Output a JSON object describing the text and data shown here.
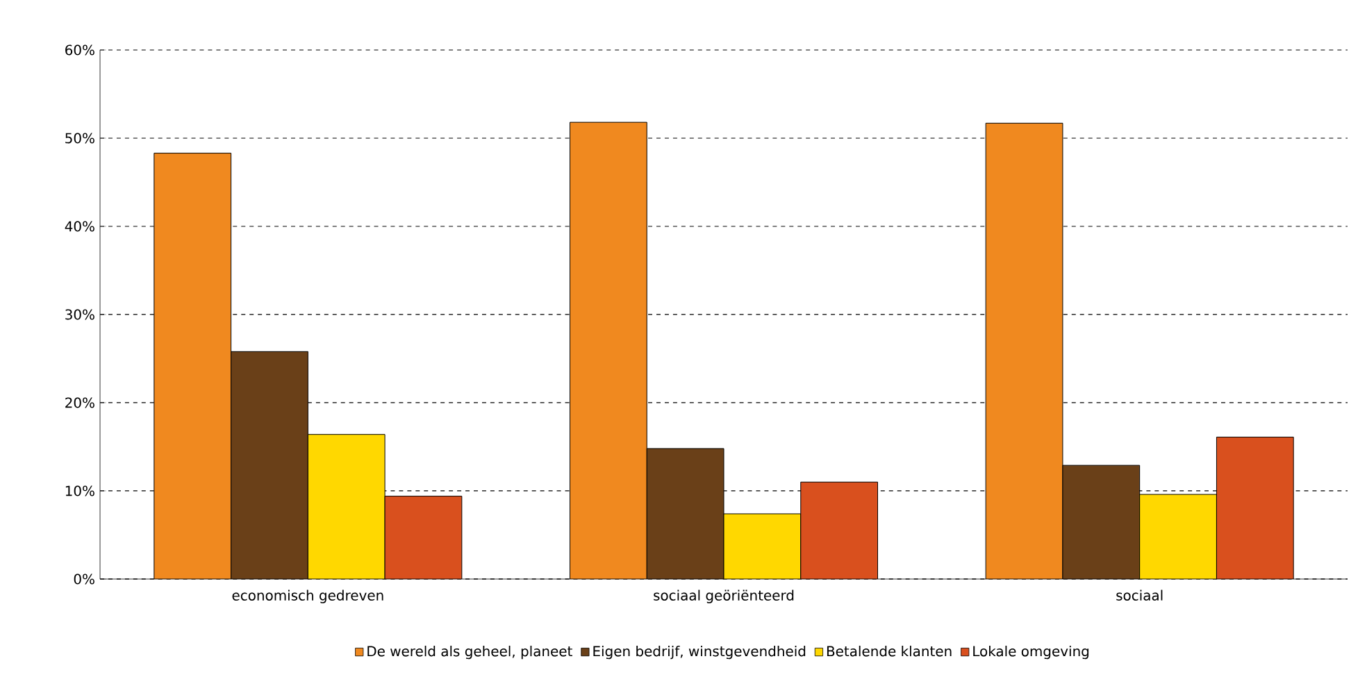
{
  "chart_data": {
    "type": "bar",
    "categories": [
      "economisch gedreven",
      "sociaal geöriënteerd",
      "sociaal"
    ],
    "series": [
      {
        "name": "De wereld als geheel, planeet",
        "color": "#f0891f",
        "values": [
          48.3,
          51.8,
          51.7
        ]
      },
      {
        "name": "Eigen bedrijf, winstgevendheid",
        "color": "#6a4018",
        "values": [
          25.8,
          14.8,
          12.9
        ]
      },
      {
        "name": "Betalende klanten",
        "color": "#ffd800",
        "values": [
          16.4,
          7.4,
          9.6
        ]
      },
      {
        "name": "Lokale omgeving",
        "color": "#d9501e",
        "values": [
          9.4,
          11.0,
          16.1
        ]
      }
    ],
    "ylim": [
      0,
      60
    ],
    "yticks": [
      {
        "value": 0,
        "label": "0%"
      },
      {
        "value": 10,
        "label": "10%"
      },
      {
        "value": 20,
        "label": "20%"
      },
      {
        "value": 30,
        "label": "30%"
      },
      {
        "value": 40,
        "label": "40%"
      },
      {
        "value": 50,
        "label": "50%"
      },
      {
        "value": 60,
        "label": "60%"
      }
    ],
    "grid": "y",
    "legend": "bottom"
  }
}
